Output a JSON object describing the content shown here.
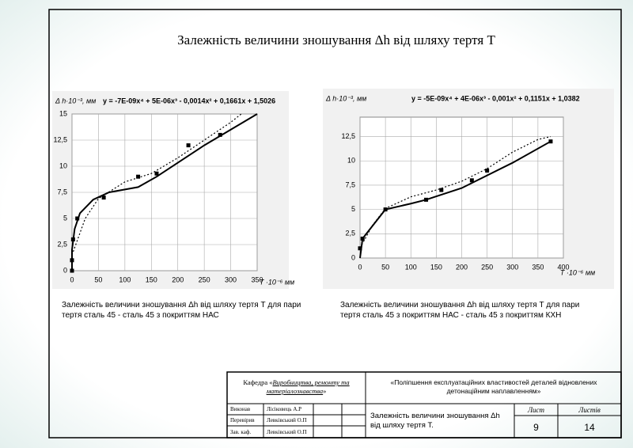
{
  "title": "Залежність величини зношування Δh від шляху тертя Т",
  "chart_data": [
    {
      "type": "line",
      "y_label": "Δ h·10⁻³, мм",
      "x_label": "T ·10⁻⁶ мм",
      "equation": "y = -7E-09x⁴ + 5E-06x³ - 0,0014x² + 0,1661x + 1,5026",
      "xlim": [
        0,
        350
      ],
      "ylim": [
        0,
        15
      ],
      "xticks": [
        0,
        50,
        100,
        150,
        200,
        250,
        300,
        350
      ],
      "yticks": [
        0,
        {
          "value": 2.5,
          "label": "2,5"
        },
        5,
        {
          "value": 7.5,
          "label": "7,5"
        },
        10,
        {
          "value": 12.5,
          "label": "12,5"
        },
        15
      ],
      "grid": true,
      "series": [
        {
          "type": "line",
          "style": "solid",
          "color": "#000000",
          "x": [
            0,
            0,
            5,
            15,
            40,
            70,
            125,
            160,
            250,
            350
          ],
          "values": [
            0,
            2,
            4,
            5.5,
            6.8,
            7.5,
            8,
            9,
            12,
            15
          ]
        },
        {
          "type": "line",
          "style": "dotted",
          "color": "#000000",
          "x": [
            0,
            25,
            50,
            100,
            150,
            200,
            250,
            300,
            320
          ],
          "values": [
            1.5,
            5,
            6.9,
            8.5,
            9.3,
            10.8,
            12.5,
            14.2,
            15
          ]
        },
        {
          "type": "scatter",
          "color": "#000000",
          "x": [
            0,
            0,
            2,
            10,
            60,
            125,
            160,
            220,
            280
          ],
          "values": [
            0,
            1,
            3,
            5,
            7,
            9,
            9.3,
            12,
            13
          ]
        }
      ]
    },
    {
      "type": "line",
      "y_label": "Δ h·10⁻³, мм",
      "x_label": "T ·10⁻⁶ мм",
      "equation": "y = -5E-09x⁴ + 4E-06x³ - 0,001x² + 0,1151x + 1,0382",
      "xlim": [
        0,
        400
      ],
      "ylim": [
        0,
        14.5
      ],
      "xticks": [
        0,
        50,
        100,
        150,
        200,
        250,
        300,
        350,
        400
      ],
      "yticks": [
        0,
        {
          "value": 2.5,
          "label": "2,5"
        },
        5,
        {
          "value": 7.5,
          "label": "7,5"
        },
        10,
        {
          "value": 12.5,
          "label": "12,5"
        }
      ],
      "grid": true,
      "series": [
        {
          "type": "line",
          "style": "solid",
          "color": "#000000",
          "x": [
            0,
            5,
            20,
            50,
            100,
            130,
            200,
            300,
            375
          ],
          "values": [
            0,
            2,
            3,
            5,
            5.6,
            6,
            7.2,
            9.8,
            12
          ]
        },
        {
          "type": "line",
          "style": "dotted",
          "color": "#000000",
          "x": [
            0,
            25,
            50,
            100,
            150,
            200,
            250,
            300,
            350,
            375
          ],
          "values": [
            1.04,
            3.4,
            5.1,
            6.3,
            7,
            7.9,
            9.2,
            10.9,
            12.2,
            12.5
          ]
        },
        {
          "type": "scatter",
          "color": "#000000",
          "x": [
            0,
            5,
            50,
            130,
            160,
            220,
            250,
            375
          ],
          "values": [
            1,
            2,
            5,
            6,
            7,
            8,
            9,
            12
          ]
        }
      ]
    }
  ],
  "captions": [
    "Залежність величини зношування Δh від шляху тертя Т для пари тертя сталь 45 - сталь 45 з покриттям НАС",
    "Залежність величини зношування Δh від шляху тертя Т для пари тертя сталь 45 з покриттям НАС - сталь 45 з покриттям КХН"
  ],
  "stamp": {
    "department_prefix": "Кафедра «",
    "department": "Виробництва, ремонту та матеріалознавства",
    "department_suffix": "»",
    "project": "«Поліпшення експлуатаційних властивостей деталей відновлених детонаційним наплавленням»",
    "rows": [
      [
        "Виконав",
        "Лісіковець А.Р"
      ],
      [
        "Перевірив",
        "Левківський О.П"
      ],
      [
        "Зав. каф.",
        "Левківський О.П"
      ]
    ],
    "sheet_title": "Залежність величини зношування Δh від шляху тертя Т.",
    "sheet_label": "Лист",
    "sheets_label": "Листів",
    "sheet": "9",
    "sheets": "14"
  }
}
